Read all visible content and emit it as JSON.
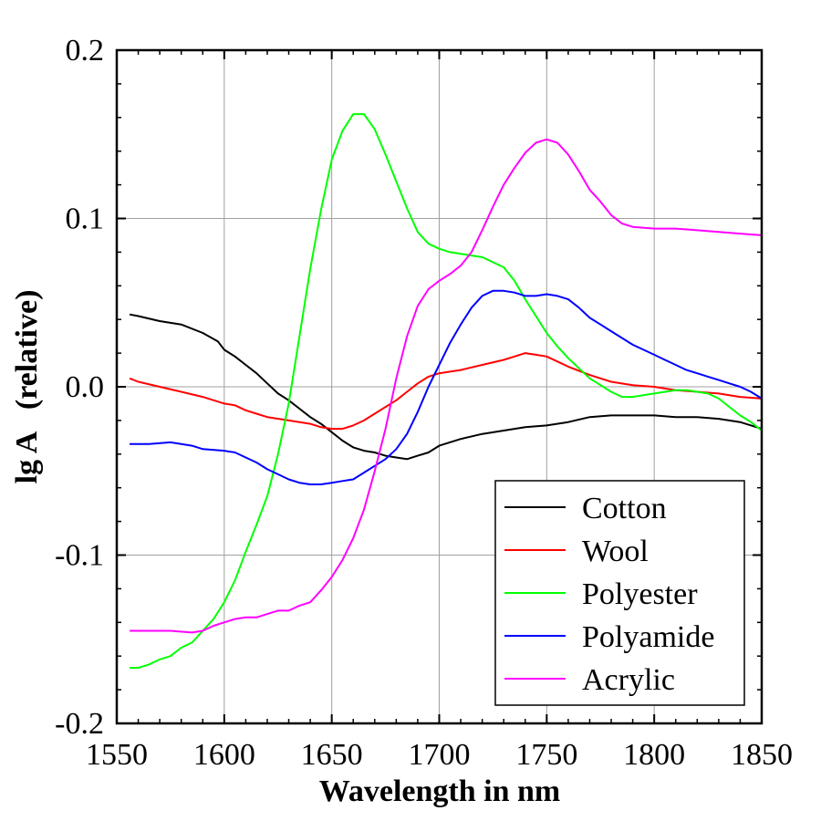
{
  "chart_data": {
    "type": "line",
    "xlabel": "Wavelength in nm",
    "ylabel": "lg A   (relative)",
    "xlim": [
      1550,
      1850
    ],
    "ylim": [
      -0.2,
      0.2
    ],
    "xticks": [
      "1550",
      "1600",
      "1650",
      "1700",
      "1750",
      "1800",
      "1850"
    ],
    "yticks": [
      "-0.2",
      "-0.1",
      "0.0",
      "0.1",
      "0.2"
    ],
    "grid": true,
    "legend_position": "bottom-right",
    "series": [
      {
        "name": "Cotton",
        "color": "#000000",
        "points": [
          [
            1556,
            0.043
          ],
          [
            1560,
            0.042
          ],
          [
            1570,
            0.039
          ],
          [
            1580,
            0.037
          ],
          [
            1590,
            0.032
          ],
          [
            1597,
            0.027
          ],
          [
            1600,
            0.022
          ],
          [
            1605,
            0.018
          ],
          [
            1610,
            0.013
          ],
          [
            1615,
            0.008
          ],
          [
            1620,
            0.002
          ],
          [
            1625,
            -0.004
          ],
          [
            1630,
            -0.008
          ],
          [
            1635,
            -0.013
          ],
          [
            1640,
            -0.018
          ],
          [
            1645,
            -0.022
          ],
          [
            1650,
            -0.027
          ],
          [
            1655,
            -0.032
          ],
          [
            1660,
            -0.036
          ],
          [
            1665,
            -0.038
          ],
          [
            1670,
            -0.039
          ],
          [
            1675,
            -0.041
          ],
          [
            1680,
            -0.042
          ],
          [
            1685,
            -0.043
          ],
          [
            1690,
            -0.041
          ],
          [
            1695,
            -0.039
          ],
          [
            1700,
            -0.035
          ],
          [
            1710,
            -0.031
          ],
          [
            1720,
            -0.028
          ],
          [
            1730,
            -0.026
          ],
          [
            1740,
            -0.024
          ],
          [
            1750,
            -0.023
          ],
          [
            1760,
            -0.021
          ],
          [
            1770,
            -0.018
          ],
          [
            1780,
            -0.017
          ],
          [
            1790,
            -0.017
          ],
          [
            1800,
            -0.017
          ],
          [
            1810,
            -0.018
          ],
          [
            1820,
            -0.018
          ],
          [
            1830,
            -0.019
          ],
          [
            1840,
            -0.021
          ],
          [
            1850,
            -0.025
          ]
        ]
      },
      {
        "name": "Wool",
        "color": "#ff0000",
        "points": [
          [
            1556,
            0.005
          ],
          [
            1560,
            0.003
          ],
          [
            1570,
            0.0
          ],
          [
            1580,
            -0.003
          ],
          [
            1590,
            -0.006
          ],
          [
            1600,
            -0.01
          ],
          [
            1605,
            -0.011
          ],
          [
            1610,
            -0.014
          ],
          [
            1615,
            -0.016
          ],
          [
            1620,
            -0.018
          ],
          [
            1630,
            -0.02
          ],
          [
            1640,
            -0.022
          ],
          [
            1645,
            -0.024
          ],
          [
            1650,
            -0.025
          ],
          [
            1655,
            -0.025
          ],
          [
            1660,
            -0.023
          ],
          [
            1665,
            -0.02
          ],
          [
            1670,
            -0.016
          ],
          [
            1675,
            -0.012
          ],
          [
            1680,
            -0.008
          ],
          [
            1685,
            -0.003
          ],
          [
            1690,
            0.002
          ],
          [
            1695,
            0.006
          ],
          [
            1700,
            0.008
          ],
          [
            1705,
            0.009
          ],
          [
            1710,
            0.01
          ],
          [
            1720,
            0.013
          ],
          [
            1730,
            0.016
          ],
          [
            1735,
            0.018
          ],
          [
            1740,
            0.02
          ],
          [
            1745,
            0.019
          ],
          [
            1750,
            0.018
          ],
          [
            1755,
            0.015
          ],
          [
            1760,
            0.012
          ],
          [
            1770,
            0.007
          ],
          [
            1780,
            0.003
          ],
          [
            1790,
            0.001
          ],
          [
            1800,
            0.0
          ],
          [
            1810,
            -0.002
          ],
          [
            1820,
            -0.003
          ],
          [
            1830,
            -0.004
          ],
          [
            1840,
            -0.006
          ],
          [
            1850,
            -0.007
          ]
        ]
      },
      {
        "name": "Polyester",
        "color": "#00ff00",
        "points": [
          [
            1556,
            -0.167
          ],
          [
            1560,
            -0.167
          ],
          [
            1565,
            -0.165
          ],
          [
            1570,
            -0.162
          ],
          [
            1575,
            -0.16
          ],
          [
            1580,
            -0.155
          ],
          [
            1585,
            -0.152
          ],
          [
            1590,
            -0.145
          ],
          [
            1595,
            -0.138
          ],
          [
            1600,
            -0.128
          ],
          [
            1605,
            -0.115
          ],
          [
            1610,
            -0.098
          ],
          [
            1615,
            -0.082
          ],
          [
            1620,
            -0.065
          ],
          [
            1625,
            -0.04
          ],
          [
            1630,
            -0.01
          ],
          [
            1635,
            0.03
          ],
          [
            1640,
            0.07
          ],
          [
            1645,
            0.105
          ],
          [
            1650,
            0.135
          ],
          [
            1655,
            0.152
          ],
          [
            1660,
            0.162
          ],
          [
            1665,
            0.162
          ],
          [
            1670,
            0.153
          ],
          [
            1675,
            0.138
          ],
          [
            1680,
            0.122
          ],
          [
            1685,
            0.106
          ],
          [
            1690,
            0.092
          ],
          [
            1695,
            0.085
          ],
          [
            1700,
            0.082
          ],
          [
            1705,
            0.08
          ],
          [
            1710,
            0.079
          ],
          [
            1715,
            0.078
          ],
          [
            1720,
            0.077
          ],
          [
            1725,
            0.074
          ],
          [
            1730,
            0.071
          ],
          [
            1735,
            0.063
          ],
          [
            1740,
            0.052
          ],
          [
            1745,
            0.042
          ],
          [
            1750,
            0.032
          ],
          [
            1755,
            0.024
          ],
          [
            1760,
            0.017
          ],
          [
            1765,
            0.011
          ],
          [
            1770,
            0.005
          ],
          [
            1775,
            0.001
          ],
          [
            1780,
            -0.003
          ],
          [
            1785,
            -0.006
          ],
          [
            1790,
            -0.006
          ],
          [
            1795,
            -0.005
          ],
          [
            1800,
            -0.004
          ],
          [
            1805,
            -0.003
          ],
          [
            1810,
            -0.002
          ],
          [
            1815,
            -0.002
          ],
          [
            1820,
            -0.003
          ],
          [
            1825,
            -0.004
          ],
          [
            1830,
            -0.007
          ],
          [
            1835,
            -0.012
          ],
          [
            1840,
            -0.017
          ],
          [
            1845,
            -0.021
          ],
          [
            1850,
            -0.026
          ]
        ]
      },
      {
        "name": "Polyamide",
        "color": "#0000ff",
        "points": [
          [
            1556,
            -0.034
          ],
          [
            1565,
            -0.034
          ],
          [
            1575,
            -0.033
          ],
          [
            1585,
            -0.035
          ],
          [
            1590,
            -0.037
          ],
          [
            1600,
            -0.038
          ],
          [
            1605,
            -0.039
          ],
          [
            1610,
            -0.042
          ],
          [
            1615,
            -0.045
          ],
          [
            1620,
            -0.049
          ],
          [
            1625,
            -0.052
          ],
          [
            1630,
            -0.055
          ],
          [
            1635,
            -0.057
          ],
          [
            1640,
            -0.058
          ],
          [
            1645,
            -0.058
          ],
          [
            1650,
            -0.057
          ],
          [
            1655,
            -0.056
          ],
          [
            1660,
            -0.055
          ],
          [
            1665,
            -0.051
          ],
          [
            1670,
            -0.047
          ],
          [
            1675,
            -0.043
          ],
          [
            1680,
            -0.037
          ],
          [
            1685,
            -0.028
          ],
          [
            1690,
            -0.015
          ],
          [
            1695,
            0.0
          ],
          [
            1700,
            0.013
          ],
          [
            1705,
            0.026
          ],
          [
            1710,
            0.037
          ],
          [
            1715,
            0.047
          ],
          [
            1720,
            0.054
          ],
          [
            1725,
            0.057
          ],
          [
            1730,
            0.057
          ],
          [
            1735,
            0.056
          ],
          [
            1740,
            0.054
          ],
          [
            1745,
            0.054
          ],
          [
            1750,
            0.055
          ],
          [
            1755,
            0.054
          ],
          [
            1760,
            0.052
          ],
          [
            1765,
            0.047
          ],
          [
            1770,
            0.041
          ],
          [
            1775,
            0.037
          ],
          [
            1780,
            0.033
          ],
          [
            1785,
            0.029
          ],
          [
            1790,
            0.025
          ],
          [
            1795,
            0.022
          ],
          [
            1800,
            0.019
          ],
          [
            1805,
            0.016
          ],
          [
            1810,
            0.013
          ],
          [
            1815,
            0.01
          ],
          [
            1820,
            0.008
          ],
          [
            1825,
            0.006
          ],
          [
            1830,
            0.004
          ],
          [
            1835,
            0.002
          ],
          [
            1840,
            0.0
          ],
          [
            1845,
            -0.003
          ],
          [
            1850,
            -0.007
          ]
        ]
      },
      {
        "name": "Acrylic",
        "color": "#ff00ff",
        "points": [
          [
            1556,
            -0.145
          ],
          [
            1565,
            -0.145
          ],
          [
            1575,
            -0.145
          ],
          [
            1585,
            -0.146
          ],
          [
            1590,
            -0.145
          ],
          [
            1595,
            -0.142
          ],
          [
            1600,
            -0.14
          ],
          [
            1605,
            -0.138
          ],
          [
            1610,
            -0.137
          ],
          [
            1615,
            -0.137
          ],
          [
            1620,
            -0.135
          ],
          [
            1625,
            -0.133
          ],
          [
            1630,
            -0.133
          ],
          [
            1635,
            -0.13
          ],
          [
            1640,
            -0.128
          ],
          [
            1645,
            -0.121
          ],
          [
            1650,
            -0.113
          ],
          [
            1655,
            -0.103
          ],
          [
            1660,
            -0.09
          ],
          [
            1665,
            -0.073
          ],
          [
            1670,
            -0.05
          ],
          [
            1675,
            -0.025
          ],
          [
            1680,
            0.005
          ],
          [
            1685,
            0.03
          ],
          [
            1690,
            0.048
          ],
          [
            1695,
            0.058
          ],
          [
            1700,
            0.063
          ],
          [
            1705,
            0.067
          ],
          [
            1710,
            0.072
          ],
          [
            1715,
            0.08
          ],
          [
            1720,
            0.093
          ],
          [
            1725,
            0.107
          ],
          [
            1730,
            0.12
          ],
          [
            1735,
            0.13
          ],
          [
            1740,
            0.139
          ],
          [
            1745,
            0.145
          ],
          [
            1750,
            0.147
          ],
          [
            1755,
            0.145
          ],
          [
            1760,
            0.138
          ],
          [
            1765,
            0.128
          ],
          [
            1770,
            0.117
          ],
          [
            1775,
            0.11
          ],
          [
            1780,
            0.102
          ],
          [
            1785,
            0.097
          ],
          [
            1790,
            0.095
          ],
          [
            1800,
            0.094
          ],
          [
            1810,
            0.094
          ],
          [
            1820,
            0.093
          ],
          [
            1830,
            0.092
          ],
          [
            1840,
            0.091
          ],
          [
            1850,
            0.09
          ]
        ]
      }
    ]
  }
}
